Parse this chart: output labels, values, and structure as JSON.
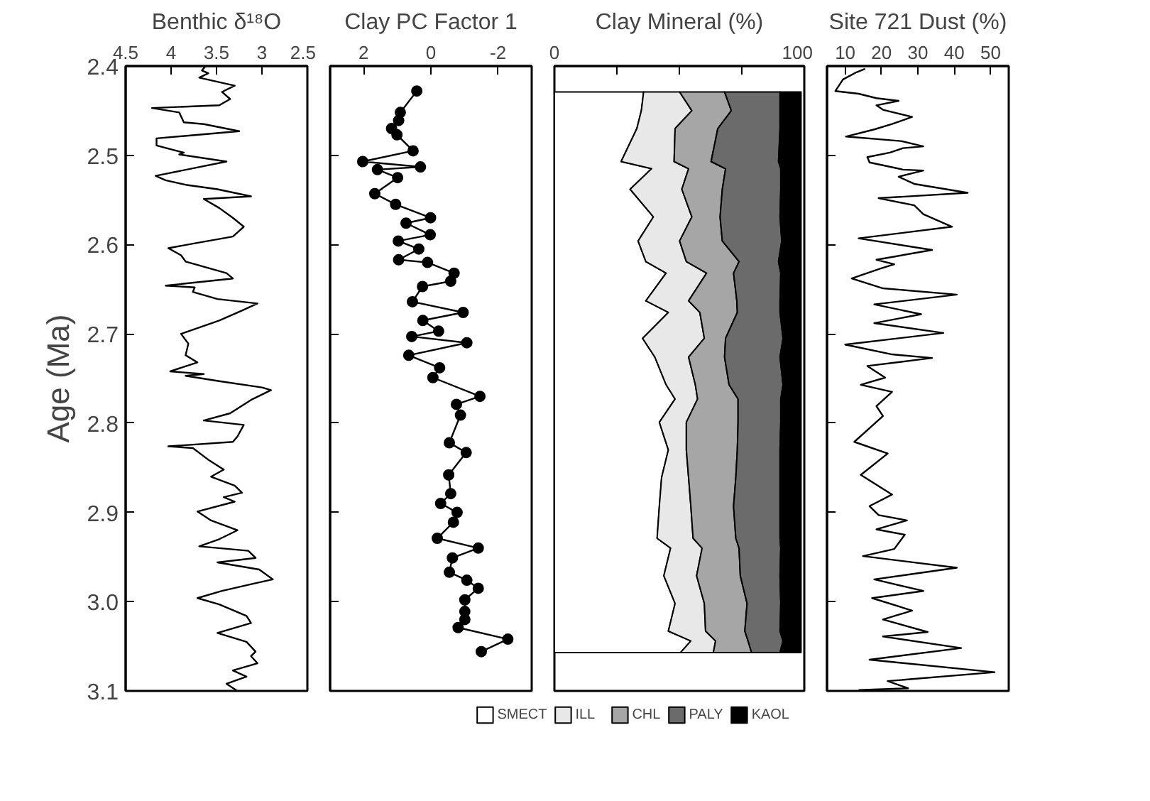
{
  "chart_data": [
    {
      "type": "line",
      "title": "Benthic δ¹⁸O",
      "ylabel": "Age (Ma)",
      "orientation": "horizontal",
      "xlim": [
        4.5,
        2.5
      ],
      "xticks": [
        4.5,
        4,
        3.5,
        3,
        2.5
      ],
      "ylim": [
        3.1,
        2.4
      ],
      "yticks": [
        2.4,
        2.5,
        2.6,
        2.7,
        2.8,
        2.9,
        {
          "value": 3.0,
          "label": "3.0"
        },
        3.1
      ],
      "grid": false,
      "legend": false,
      "x": [
        2.4,
        2.405,
        2.408,
        2.413,
        2.422,
        2.429,
        2.437,
        2.444,
        2.447,
        2.452,
        2.463,
        2.465,
        2.473,
        2.481,
        2.489,
        2.497,
        2.499,
        2.507,
        2.523,
        2.528,
        2.533,
        2.538,
        2.546,
        2.549,
        2.559,
        2.57,
        2.58,
        2.591,
        2.599,
        2.604,
        2.612,
        2.619,
        2.632,
        2.638,
        2.646,
        2.648,
        2.653,
        2.661,
        2.666,
        2.674,
        2.685,
        2.7,
        2.711,
        2.724,
        2.732,
        2.742,
        2.745,
        2.747,
        2.753,
        2.76,
        2.763,
        2.774,
        2.789,
        2.797,
        2.802,
        2.815,
        2.821,
        2.826,
        2.828,
        2.841,
        2.852,
        2.86,
        2.87,
        2.878,
        2.883,
        2.888,
        2.899,
        2.909,
        2.92,
        2.93,
        2.938,
        2.943,
        2.951,
        2.956,
        2.964,
        2.975,
        2.98,
        2.988,
        2.996,
        3.003,
        3.016,
        3.024,
        3.035,
        3.045,
        3.056,
        3.061,
        3.069,
        3.077,
        3.084,
        3.092,
        3.1
      ],
      "series": [
        {
          "color": "#000000",
          "values": [
            3.62,
            3.66,
            3.59,
            3.69,
            3.3,
            3.44,
            3.35,
            3.47,
            4.21,
            3.91,
            3.86,
            3.64,
            3.25,
            4.16,
            4.16,
            3.86,
            3.91,
            3.39,
            4.17,
            4.06,
            3.84,
            3.49,
            3.12,
            3.64,
            3.47,
            3.32,
            3.2,
            3.32,
            3.76,
            4.03,
            3.89,
            3.84,
            3.39,
            3.32,
            4.06,
            3.74,
            3.76,
            3.49,
            3.05,
            3.22,
            3.47,
            3.89,
            3.81,
            3.84,
            3.71,
            4.01,
            3.64,
            3.84,
            3.47,
            3.0,
            2.9,
            3.12,
            3.35,
            3.64,
            3.2,
            3.27,
            3.32,
            4.03,
            3.76,
            3.59,
            3.42,
            3.56,
            3.3,
            3.22,
            3.42,
            3.3,
            3.71,
            3.56,
            3.27,
            3.47,
            3.69,
            3.15,
            3.07,
            3.49,
            3.03,
            2.88,
            3.1,
            3.44,
            3.71,
            3.47,
            3.17,
            3.12,
            3.49,
            3.17,
            3.07,
            3.12,
            3.05,
            3.32,
            3.17,
            3.39,
            3.27
          ]
        }
      ]
    },
    {
      "type": "line",
      "title": "Clay PC Factor 1",
      "orientation": "horizontal",
      "marker": "circle",
      "xlim": [
        3,
        -3
      ],
      "xticks": [
        2,
        0,
        -2
      ],
      "ylim": [
        3.1,
        2.4
      ],
      "yticks": [
        2.5,
        2.6,
        2.7,
        2.8,
        2.9,
        3.0
      ],
      "tick_labels": "x",
      "grid": false,
      "legend": false,
      "x": [
        2.428,
        2.452,
        2.461,
        2.47,
        2.477,
        2.495,
        2.507,
        2.513,
        2.516,
        2.525,
        2.543,
        2.555,
        2.57,
        2.576,
        2.589,
        2.596,
        2.605,
        2.617,
        2.62,
        2.632,
        2.641,
        2.647,
        2.664,
        2.676,
        2.685,
        2.697,
        2.703,
        2.71,
        2.724,
        2.738,
        2.749,
        2.77,
        2.779,
        2.791,
        2.822,
        2.833,
        2.858,
        2.879,
        2.89,
        2.9,
        2.911,
        2.929,
        2.94,
        2.951,
        2.967,
        2.976,
        2.985,
        2.998,
        3.011,
        3.02,
        3.029,
        3.042,
        3.056
      ],
      "series": [
        {
          "color": "#000000",
          "values": [
            0.42,
            0.91,
            0.96,
            1.17,
            1.01,
            0.53,
            2.03,
            0.31,
            1.59,
            0.99,
            1.67,
            1.05,
            0.01,
            0.74,
            0.02,
            0.97,
            0.36,
            0.96,
            0.1,
            -0.69,
            -0.59,
            0.25,
            0.55,
            -0.96,
            0.24,
            -0.23,
            0.57,
            -1.07,
            0.66,
            -0.26,
            -0.06,
            -1.46,
            -0.76,
            -0.88,
            -0.55,
            -1.05,
            -0.53,
            -0.59,
            -0.29,
            -0.78,
            -0.67,
            -0.19,
            -1.41,
            -0.64,
            -0.55,
            -1.07,
            -1.41,
            -1.01,
            -1.01,
            -1.01,
            -0.81,
            -2.29,
            -1.5
          ]
        }
      ]
    },
    {
      "type": "area",
      "title": "Clay Mineral (%)",
      "orientation": "horizontal",
      "stacked": true,
      "xlim": [
        0,
        100
      ],
      "xticks": [
        0,
        {
          "value": 25,
          "label": null
        },
        {
          "value": 50,
          "label": null
        },
        {
          "value": 75,
          "label": null
        },
        100
      ],
      "ylim": [
        3.1,
        2.4
      ],
      "tick_labels": "x",
      "grid": false,
      "legend": "bottom",
      "x": [
        2.429,
        2.45,
        2.47,
        2.507,
        2.515,
        2.538,
        2.569,
        2.596,
        2.619,
        2.632,
        2.663,
        2.676,
        2.705,
        2.726,
        2.757,
        2.773,
        2.799,
        2.83,
        2.861,
        2.893,
        2.929,
        2.94,
        2.971,
        3.002,
        3.033,
        3.044,
        3.057
      ],
      "series": [
        {
          "name": "SMECT",
          "color": "#ffffff",
          "values": [
            35.7,
            34.8,
            33.0,
            26.7,
            38.9,
            30.3,
            39.6,
            33.5,
            36.6,
            44.7,
            36.6,
            45.6,
            35.3,
            40.2,
            44.7,
            48.3,
            42.0,
            45.6,
            42.9,
            42.0,
            41.1,
            46.5,
            43.8,
            48.3,
            45.6,
            54.6,
            50.5
          ]
        },
        {
          "name": "ILL",
          "color": "#e8e8e8",
          "values": [
            14.4,
            20.2,
            15.3,
            21.2,
            14.8,
            20.7,
            15.4,
            16.6,
            16.2,
            16.2,
            17.1,
            12.6,
            24.7,
            13.5,
            11.7,
            9.0,
            10.8,
            7.2,
            10.8,
            12.6,
            14.4,
            12.6,
            13.1,
            11.7,
            14.9,
            9.9,
            13.1
          ]
        },
        {
          "name": "CHL",
          "color": "#a6a6a6",
          "values": [
            18.0,
            15.8,
            17.1,
            14.8,
            14.8,
            16.2,
            11.3,
            17.1,
            21.1,
            10.8,
            19.3,
            15.0,
            8.5,
            14.4,
            13.5,
            16.2,
            20.7,
            20.4,
            18.9,
            17.1,
            17.1,
            14.8,
            17.5,
            17.1,
            15.7,
            13.0,
            15.3
          ]
        },
        {
          "name": "PALY",
          "color": "#6b6b6b",
          "values": [
            22.2,
            19.5,
            24.9,
            27.0,
            22.1,
            23.4,
            24.0,
            23.8,
            15.8,
            18.9,
            17.3,
            17.1,
            23.0,
            22.2,
            21.6,
            17.1,
            17.1,
            17.1,
            17.7,
            18.6,
            17.7,
            16.7,
            15.9,
            13.5,
            14.1,
            14.0,
            11.4
          ]
        },
        {
          "name": "KAOL",
          "color": "#000000",
          "values": [
            8.4,
            8.4,
            8.4,
            9.0,
            8.1,
            8.1,
            8.4,
            7.7,
            9.0,
            8.1,
            8.4,
            8.4,
            7.2,
            8.4,
            7.2,
            8.1,
            8.1,
            8.4,
            8.4,
            8.4,
            8.4,
            8.1,
            8.4,
            8.1,
            8.4,
            7.2,
            8.4
          ]
        }
      ]
    },
    {
      "type": "line",
      "title": "Site 721 Dust (%)",
      "orientation": "horizontal",
      "xlim": [
        5,
        55
      ],
      "xticks": [
        10,
        20,
        30,
        40,
        50
      ],
      "ylim": [
        3.1,
        2.4
      ],
      "yticks": [
        2.4,
        2.5,
        2.6,
        2.7,
        2.8,
        2.9,
        3.0,
        3.1
      ],
      "tick_labels": "x",
      "grid": false,
      "legend": false,
      "x": [
        2.403,
        2.407,
        2.415,
        2.428,
        2.431,
        2.436,
        2.439,
        2.444,
        2.449,
        2.457,
        2.465,
        2.471,
        2.479,
        2.484,
        2.49,
        2.492,
        2.497,
        2.502,
        2.508,
        2.516,
        2.517,
        2.524,
        2.532,
        2.542,
        2.548,
        2.556,
        2.566,
        2.58,
        2.593,
        2.606,
        2.617,
        2.622,
        2.627,
        2.638,
        2.649,
        2.656,
        2.667,
        2.678,
        2.688,
        2.699,
        2.712,
        2.723,
        2.727,
        2.736,
        2.749,
        2.757,
        2.765,
        2.781,
        2.792,
        2.821,
        2.834,
        2.858,
        2.88,
        2.893,
        2.903,
        2.909,
        2.919,
        2.925,
        2.941,
        2.949,
        2.962,
        2.975,
        2.988,
        2.996,
        3.01,
        3.02,
        3.034,
        3.039,
        3.052,
        3.065,
        3.079,
        3.089,
        3.097,
        3.099
      ],
      "series": [
        {
          "color": "#000000",
          "values": [
            15.5,
            13.1,
            9.4,
            7.3,
            13.7,
            18.6,
            24.7,
            18.6,
            20.4,
            28.4,
            22.9,
            18.0,
            10.2,
            25.3,
            31.5,
            25.9,
            22.3,
            16.1,
            16.7,
            25.9,
            31.5,
            24.7,
            29.0,
            43.7,
            19.2,
            29.0,
            31.5,
            39.4,
            13.7,
            33.9,
            18.6,
            23.5,
            19.6,
            11.8,
            20.4,
            40.7,
            18.0,
            30.9,
            18.0,
            37.0,
            10.0,
            22.9,
            33.9,
            16.1,
            21.0,
            14.3,
            22.9,
            18.6,
            20.4,
            12.5,
            21.7,
            14.3,
            22.9,
            16.7,
            19.2,
            27.0,
            18.6,
            26.4,
            23.5,
            14.9,
            40.7,
            18.0,
            31.5,
            17.4,
            28.4,
            20.4,
            32.7,
            20.4,
            41.9,
            16.7,
            51.1,
            21.7,
            27.3,
            13.7
          ]
        }
      ]
    }
  ]
}
